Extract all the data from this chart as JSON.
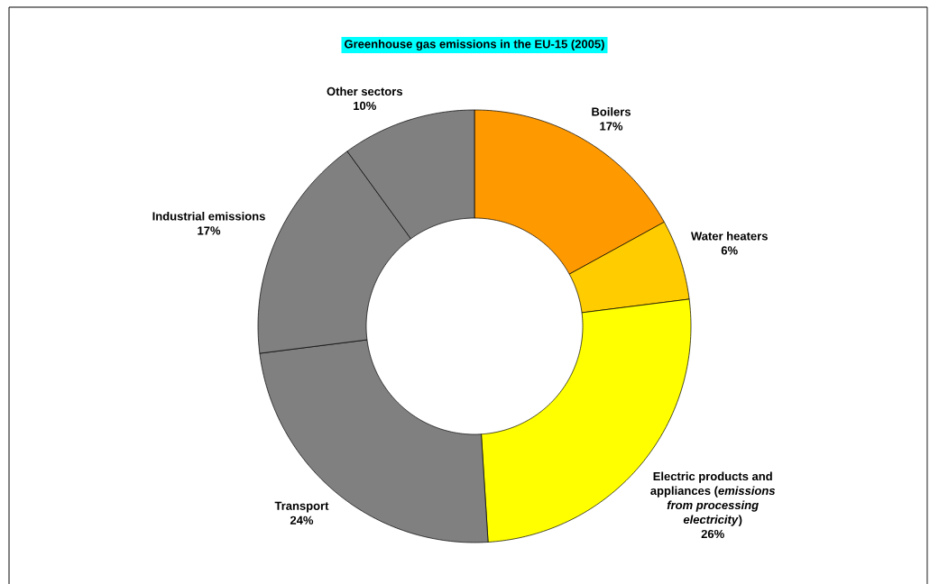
{
  "chart_data": {
    "type": "donut",
    "title": "Greenhouse gas emissions in the EU-15 (2005)",
    "categories": [
      "Boilers",
      "Water heaters",
      "Electric products and appliances (*emissions from processing electricity*)",
      "Transport",
      "Industrial emissions",
      "Other sectors"
    ],
    "values": [
      17,
      6,
      26,
      24,
      17,
      10
    ],
    "value_labels": [
      "17%",
      "6%",
      "26%",
      "24%",
      "17%",
      "10%"
    ],
    "colors": [
      "#ff9900",
      "#ffcc00",
      "#ffff00",
      "#808080",
      "#808080",
      "#808080"
    ],
    "legend": false
  }
}
